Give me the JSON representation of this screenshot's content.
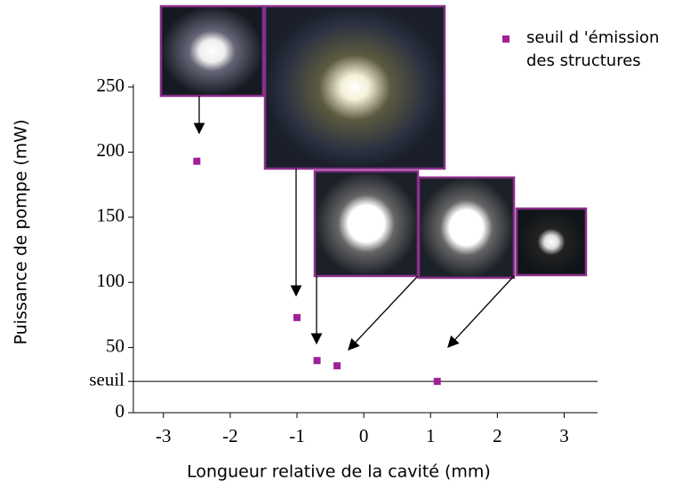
{
  "chart_data": {
    "type": "scatter",
    "xlabel": "Longueur relative de la cavité  (mm)",
    "ylabel": "Puissance de pompe (mW)",
    "x": [
      -2.5,
      -1.0,
      -0.7,
      -0.4,
      1.1
    ],
    "series": [
      {
        "name": "seuil d 'émission des structures",
        "color": "#a0209a",
        "values": [
          193,
          73,
          40,
          36,
          24
        ]
      }
    ],
    "xlim": [
      -3.45,
      3.5
    ],
    "ylim": [
      0,
      250
    ],
    "xticks": [
      -3,
      -2,
      -1,
      0,
      1,
      2,
      3
    ],
    "yticks": [
      0,
      {
        "value": 24,
        "label": "seuil"
      },
      50,
      100,
      150,
      200,
      250
    ],
    "hlines": [
      24
    ]
  }
}
